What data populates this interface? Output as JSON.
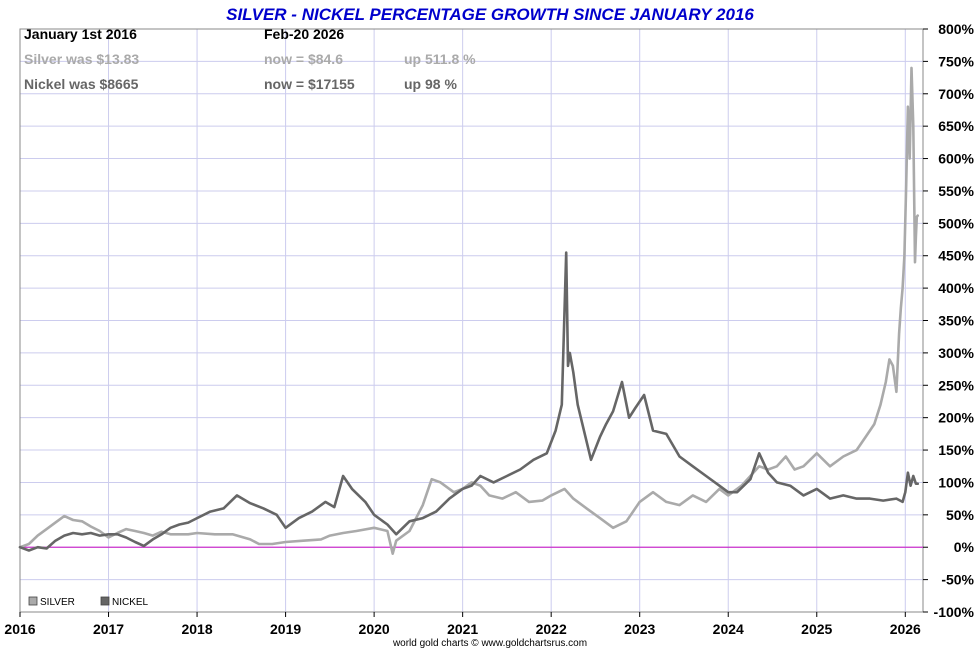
{
  "header": {
    "title": "SILVER - NICKEL PERCENTAGE GROWTH SINCE JANUARY 2016",
    "start_label": "January 1st 2016",
    "end_label": "Feb-20  2026",
    "silver_was": "Silver was $13.83",
    "silver_now": "now = $84.6",
    "silver_up": "up 511.8 %",
    "nickel_was": "Nickel was $8665",
    "nickel_now": "now = $17155",
    "nickel_up": "up 98 %"
  },
  "legend": {
    "silver": "SILVER",
    "nickel": "NICKEL"
  },
  "credit": "world gold charts © www.goldchartsrus.com",
  "colors": {
    "silver": "#aaaaaa",
    "nickel": "#666666",
    "title": "#0000cc",
    "zero_line": "#cc33cc",
    "grid": "#ccccee"
  },
  "chart_data": {
    "type": "line",
    "title": "SILVER - NICKEL PERCENTAGE GROWTH SINCE JANUARY 2016",
    "xlabel": "",
    "ylabel": "",
    "xlim": [
      2016.0,
      2026.2
    ],
    "ylim": [
      -100,
      800
    ],
    "x_ticks": [
      2016,
      2017,
      2018,
      2019,
      2020,
      2021,
      2022,
      2023,
      2024,
      2025,
      2026
    ],
    "x_tick_labels": [
      "2016",
      "2017",
      "2018",
      "2019",
      "2020",
      "2021",
      "2022",
      "2023",
      "2024",
      "2025",
      "2026"
    ],
    "y_ticks": [
      -100,
      -50,
      0,
      50,
      100,
      150,
      200,
      250,
      300,
      350,
      400,
      450,
      500,
      550,
      600,
      650,
      700,
      750,
      800
    ],
    "y_tick_labels": [
      "-100%",
      "-50%",
      "0%",
      "50%",
      "100%",
      "150%",
      "200%",
      "250%",
      "300%",
      "350%",
      "400%",
      "450%",
      "500%",
      "550%",
      "600%",
      "650%",
      "700%",
      "750%",
      "800%"
    ],
    "grid": true,
    "legend_position": "bottom-left",
    "series": [
      {
        "name": "SILVER",
        "x": [
          2016.0,
          2016.1,
          2016.2,
          2016.3,
          2016.4,
          2016.5,
          2016.6,
          2016.7,
          2016.8,
          2016.9,
          2017.0,
          2017.1,
          2017.2,
          2017.3,
          2017.4,
          2017.5,
          2017.6,
          2017.7,
          2017.8,
          2017.9,
          2018.0,
          2018.2,
          2018.4,
          2018.6,
          2018.7,
          2018.85,
          2019.0,
          2019.2,
          2019.4,
          2019.5,
          2019.65,
          2019.8,
          2020.0,
          2020.15,
          2020.21,
          2020.25,
          2020.4,
          2020.55,
          2020.6,
          2020.65,
          2020.75,
          2020.9,
          2021.0,
          2021.1,
          2021.2,
          2021.3,
          2021.45,
          2021.6,
          2021.75,
          2021.9,
          2022.0,
          2022.15,
          2022.25,
          2022.4,
          2022.55,
          2022.7,
          2022.85,
          2023.0,
          2023.15,
          2023.3,
          2023.45,
          2023.6,
          2023.75,
          2023.9,
          2024.0,
          2024.15,
          2024.25,
          2024.35,
          2024.45,
          2024.55,
          2024.65,
          2024.75,
          2024.85,
          2025.0,
          2025.15,
          2025.3,
          2025.45,
          2025.55,
          2025.65,
          2025.72,
          2025.78,
          2025.82,
          2025.86,
          2025.9,
          2025.93,
          2025.95,
          2025.97,
          2025.99,
          2026.01,
          2026.03,
          2026.05,
          2026.07,
          2026.09,
          2026.1,
          2026.11,
          2026.12,
          2026.13,
          2026.14
        ],
        "values": [
          0,
          5,
          18,
          28,
          38,
          48,
          42,
          40,
          32,
          25,
          15,
          22,
          28,
          25,
          22,
          18,
          24,
          20,
          20,
          20,
          22,
          20,
          20,
          12,
          5,
          5,
          8,
          10,
          12,
          18,
          22,
          25,
          30,
          25,
          -10,
          10,
          25,
          65,
          85,
          105,
          100,
          85,
          90,
          100,
          95,
          80,
          75,
          85,
          70,
          72,
          80,
          90,
          75,
          60,
          45,
          30,
          40,
          70,
          85,
          70,
          65,
          80,
          70,
          90,
          80,
          95,
          110,
          125,
          120,
          125,
          140,
          120,
          125,
          145,
          125,
          140,
          150,
          170,
          190,
          220,
          255,
          290,
          280,
          240,
          330,
          370,
          400,
          450,
          560,
          680,
          600,
          740,
          650,
          550,
          440,
          480,
          510,
          512
        ]
      },
      {
        "name": "NICKEL",
        "x": [
          2016.0,
          2016.1,
          2016.2,
          2016.3,
          2016.4,
          2016.5,
          2016.6,
          2016.7,
          2016.8,
          2016.9,
          2017.0,
          2017.1,
          2017.2,
          2017.3,
          2017.4,
          2017.5,
          2017.6,
          2017.7,
          2017.8,
          2017.9,
          2018.0,
          2018.15,
          2018.3,
          2018.45,
          2018.6,
          2018.75,
          2018.9,
          2019.0,
          2019.15,
          2019.3,
          2019.45,
          2019.55,
          2019.65,
          2019.75,
          2019.9,
          2020.0,
          2020.15,
          2020.25,
          2020.4,
          2020.55,
          2020.7,
          2020.85,
          2021.0,
          2021.1,
          2021.2,
          2021.35,
          2021.5,
          2021.65,
          2021.8,
          2021.95,
          2022.05,
          2022.12,
          2022.17,
          2022.19,
          2022.21,
          2022.25,
          2022.3,
          2022.45,
          2022.55,
          2022.62,
          2022.7,
          2022.8,
          2022.88,
          2022.95,
          2023.05,
          2023.15,
          2023.3,
          2023.45,
          2023.6,
          2023.75,
          2023.9,
          2024.0,
          2024.1,
          2024.25,
          2024.35,
          2024.45,
          2024.55,
          2024.7,
          2024.85,
          2025.0,
          2025.15,
          2025.3,
          2025.45,
          2025.6,
          2025.75,
          2025.9,
          2025.97,
          2026.0,
          2026.03,
          2026.06,
          2026.09,
          2026.12,
          2026.14
        ],
        "values": [
          0,
          -5,
          0,
          -2,
          10,
          18,
          22,
          20,
          22,
          18,
          20,
          20,
          15,
          8,
          2,
          12,
          20,
          30,
          35,
          38,
          45,
          55,
          60,
          80,
          68,
          60,
          50,
          30,
          45,
          55,
          70,
          62,
          110,
          90,
          70,
          50,
          35,
          20,
          40,
          45,
          55,
          75,
          90,
          95,
          110,
          100,
          110,
          120,
          135,
          145,
          180,
          220,
          455,
          280,
          300,
          270,
          220,
          135,
          170,
          190,
          210,
          255,
          200,
          215,
          235,
          180,
          175,
          140,
          125,
          110,
          95,
          85,
          85,
          105,
          145,
          115,
          100,
          95,
          80,
          90,
          75,
          80,
          75,
          75,
          72,
          75,
          70,
          85,
          115,
          95,
          110,
          98,
          98
        ]
      }
    ]
  }
}
